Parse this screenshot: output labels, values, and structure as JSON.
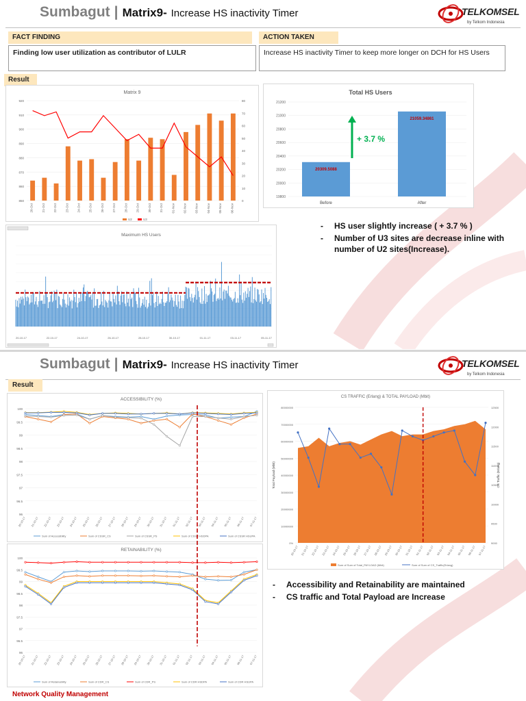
{
  "slide1": {
    "brand": "Sumbagut",
    "matrix": "Matrix9-",
    "subtitle": "Increase HS inactivity Timer",
    "logo": {
      "word": "TELKOMSEL",
      "tag": "by Telkom Indonesia"
    },
    "fact_finding": {
      "label": "FACT FINDING",
      "text": "Finding low user utilization as contributor of LULR"
    },
    "action_taken": {
      "label": "ACTION TAKEN",
      "text": "Increase HS inactivity Timer to keep more longer on DCH for HS Users"
    },
    "result_label": "Result",
    "bullets": [
      "HS user slightly increase ( + 3.7 % )",
      "Number of U3 sites are decrease inline with number of U2 sites(Increase)."
    ],
    "colors": {
      "bar": "#ed7d31",
      "line": "#ff0000",
      "blue": "#5b9bd5",
      "accent_red": "#c00000"
    }
  },
  "slide2": {
    "brand": "Sumbagut",
    "matrix": "Matrix9-",
    "subtitle": "Increase HS inactivity Timer",
    "logo": {
      "word": "TELKOMSEL",
      "tag": "by Telkom Indonesia"
    },
    "result_label": "Result",
    "bullets": [
      "Accessibility and Retainability are maintained",
      "CS traffic and Total Payload are Increase"
    ],
    "footer": "Network Quality Management"
  },
  "chart_data": [
    {
      "type": "bar",
      "title": "Matrix 9",
      "categories": [
        "20-Oct",
        "21-Oct",
        "22-Oct",
        "23-Oct",
        "24-Oct",
        "25-Oct",
        "26-Oct",
        "27-Oct",
        "28-Oct",
        "29-Oct",
        "30-Oct",
        "31-Oct",
        "01-Nov",
        "02-Nov",
        "03-Nov",
        "04-Nov",
        "05-Nov",
        "06-Nov"
      ],
      "y_ticks": [
        "920",
        "910",
        "900",
        "890",
        "880",
        "870",
        "860",
        "850"
      ],
      "y2_ticks": [
        "80",
        "70",
        "60",
        "50",
        "40",
        "30",
        "20",
        "10",
        "0"
      ],
      "ylim": [
        850,
        920
      ],
      "y2lim": [
        0,
        80
      ],
      "series": [
        {
          "axis": "left",
          "values": [
            864,
            866,
            862,
            888,
            878,
            879,
            866,
            877,
            893,
            878,
            894,
            893,
            868,
            898,
            903,
            911,
            906,
            911
          ]
        },
        {
          "axis": "right",
          "values": [
            72,
            68,
            71,
            50,
            55,
            55,
            68,
            58,
            48,
            53,
            42,
            42,
            62,
            43,
            35,
            27,
            35,
            20
          ]
        }
      ],
      "legend": [
        "U2",
        "U3"
      ]
    },
    {
      "type": "bar",
      "title": "Total HS Users",
      "categories": [
        "Before",
        "After"
      ],
      "values": [
        20309.5088,
        21059.34861
      ],
      "value_labels": [
        "20309.5088",
        "21059.34861"
      ],
      "y_ticks": [
        "21200",
        "21000",
        "20800",
        "20600",
        "20400",
        "20200",
        "20000",
        "19800"
      ],
      "ylim": [
        19800,
        21200
      ],
      "annotation": "+ 3.7 %"
    },
    {
      "type": "bar",
      "title": "Maximum HS Users",
      "x_ticks": [
        "20-10-17",
        "22-10-17",
        "24-10-17",
        "26-10-17",
        "28-10-17",
        "30-10-17",
        "01-11-17",
        "03-11-17",
        "05-11-17"
      ],
      "before_level": 7.5,
      "after_level": 9.8,
      "ylim": [
        0,
        18
      ]
    },
    {
      "type": "line",
      "title": "ACCESSIBILITY (%)",
      "categories": [
        "20-10-17",
        "21-10-17",
        "22-10-17",
        "23-10-17",
        "24-10-17",
        "25-10-17",
        "26-10-17",
        "27-10-17",
        "28-10-17",
        "29-10-17",
        "30-10-17",
        "31-10-17",
        "01-11-17",
        "02-11-17",
        "03-11-17",
        "04-11-17",
        "05-11-17",
        "06-11-17",
        "07-11-17"
      ],
      "y_ticks": [
        "100",
        "99.5",
        "99",
        "98.5",
        "98",
        "97.5",
        "97",
        "96.5",
        "96"
      ],
      "ylim": [
        96,
        100
      ],
      "series": [
        {
          "name": "Sum of Accessibility",
          "values": [
            99.78,
            99.74,
            99.7,
            99.78,
            99.8,
            99.6,
            99.74,
            99.7,
            99.68,
            99.7,
            99.6,
            99.72,
            99.76,
            99.78,
            99.76,
            99.64,
            99.68,
            99.7,
            99.9
          ]
        },
        {
          "name": "Sum of CSSR_CS",
          "values": [
            99.7,
            99.6,
            99.5,
            99.78,
            99.8,
            99.45,
            99.7,
            99.65,
            99.6,
            99.45,
            99.55,
            99.6,
            99.3,
            99.8,
            99.7,
            99.55,
            99.4,
            99.65,
            99.8
          ]
        },
        {
          "name": "Sum of CSSR_PS",
          "values": [
            99.72,
            99.7,
            99.68,
            99.74,
            99.76,
            99.6,
            99.74,
            99.68,
            99.66,
            99.64,
            99.4,
            98.95,
            98.6,
            99.7,
            99.7,
            99.65,
            99.6,
            99.7,
            99.75
          ]
        },
        {
          "name": "Sum of CSSR HSDPA",
          "values": [
            99.85,
            99.85,
            99.87,
            99.9,
            99.86,
            99.78,
            99.82,
            99.84,
            99.82,
            99.8,
            99.82,
            99.84,
            99.8,
            99.85,
            99.84,
            99.82,
            99.8,
            99.84,
            99.86
          ]
        },
        {
          "name": "Sum of CSSR HSUPA",
          "values": [
            99.84,
            99.84,
            99.86,
            99.86,
            99.84,
            99.76,
            99.82,
            99.82,
            99.8,
            99.8,
            99.82,
            99.82,
            99.8,
            99.84,
            99.82,
            99.8,
            99.78,
            99.82,
            99.84
          ]
        }
      ]
    },
    {
      "type": "line",
      "title": "RETAINABILITY (%)",
      "categories": [
        "20-10-17",
        "21-10-17",
        "22-10-17",
        "23-10-17",
        "24-10-17",
        "25-10-17",
        "26-10-17",
        "27-10-17",
        "28-10-17",
        "29-10-17",
        "30-10-17",
        "31-10-17",
        "01-11-17",
        "02-11-17",
        "03-11-17",
        "04-11-17",
        "05-11-17",
        "06-11-17",
        "07-11-17"
      ],
      "y_ticks": [
        "100",
        "99.5",
        "99",
        "98.5",
        "98",
        "97.5",
        "97",
        "96.5",
        "96"
      ],
      "ylim": [
        96,
        100
      ],
      "series": [
        {
          "name": "Sum of Retainability",
          "values": [
            99.4,
            99.2,
            99.0,
            99.4,
            99.45,
            99.42,
            99.45,
            99.45,
            99.45,
            99.44,
            99.45,
            99.42,
            99.4,
            99.3,
            99.1,
            99.05,
            99.06,
            99.4,
            99.5
          ]
        },
        {
          "name": "Sum of CDR_CS",
          "values": [
            99.3,
            99.1,
            98.95,
            99.2,
            99.25,
            99.22,
            99.25,
            99.25,
            99.25,
            99.24,
            99.25,
            99.22,
            99.2,
            99.25,
            99.2,
            99.22,
            99.2,
            99.3,
            99.5
          ]
        },
        {
          "name": "Sum of CDR_PS",
          "values": [
            99.82,
            99.8,
            99.78,
            99.82,
            99.84,
            99.82,
            99.82,
            99.82,
            99.82,
            99.82,
            99.82,
            99.82,
            99.82,
            99.8,
            99.8,
            99.82,
            99.8,
            99.82,
            99.84
          ]
        },
        {
          "name": "Sum of CDR HSDPA",
          "values": [
            98.85,
            98.5,
            98.1,
            98.8,
            99.0,
            99.0,
            99.0,
            99.0,
            99.0,
            99.0,
            99.0,
            98.95,
            98.9,
            98.7,
            98.2,
            98.1,
            98.6,
            99.1,
            99.3
          ]
        },
        {
          "name": "Sum of CDR HSUPA",
          "values": [
            98.8,
            98.45,
            98.05,
            98.75,
            98.95,
            98.95,
            98.95,
            98.95,
            98.95,
            98.95,
            98.95,
            98.9,
            98.85,
            98.65,
            98.15,
            98.05,
            98.55,
            99.05,
            99.25
          ]
        }
      ]
    },
    {
      "type": "area",
      "title": "CS TRAFFIC (Erlang) & TOTAL PAYLOAD (Mbit)",
      "categories": [
        "20-10-17",
        "21-10-17",
        "22-10-17",
        "23-10-17",
        "24-10-17",
        "25-10-17",
        "26-10-17",
        "27-10-17",
        "28-10-17",
        "29-10-17",
        "30-10-17",
        "31-10-17",
        "01-11-17",
        "02-11-17",
        "03-11-17",
        "04-11-17",
        "05-11-17",
        "06-11-17",
        "07-11-17"
      ],
      "ylabel": "Total Payload (Mbit)",
      "y2label": "CS Traffic (Erlang)",
      "y_ticks": [
        "80000000",
        "70000000",
        "60000000",
        "50000000",
        "40000000",
        "30000000",
        "20000000",
        "10000000",
        "0%"
      ],
      "y2_ticks": [
        "12500",
        "12000",
        "11500",
        "11000",
        "10500",
        "10000",
        "9500",
        "9000"
      ],
      "ylim": [
        0,
        80000000
      ],
      "y2lim": [
        9000,
        12500
      ],
      "series": [
        {
          "name": "Sum of Sum of Total_PAYLOAD (Mbit)",
          "axis": "left",
          "values": [
            56000000,
            57000000,
            62000000,
            57000000,
            59000000,
            60000000,
            58000000,
            61000000,
            64000000,
            66000000,
            63000000,
            64000000,
            64000000,
            66000000,
            67000000,
            69000000,
            70000000,
            72000000,
            67000000
          ]
        },
        {
          "name": "Sum of Sum of CS_Traffic(Erlang)",
          "axis": "right",
          "values": [
            11850,
            11200,
            10450,
            11950,
            11550,
            11550,
            11200,
            11300,
            10950,
            10250,
            11900,
            11750,
            11650,
            11750,
            11850,
            11900,
            11100,
            10750,
            12100
          ]
        }
      ]
    }
  ]
}
